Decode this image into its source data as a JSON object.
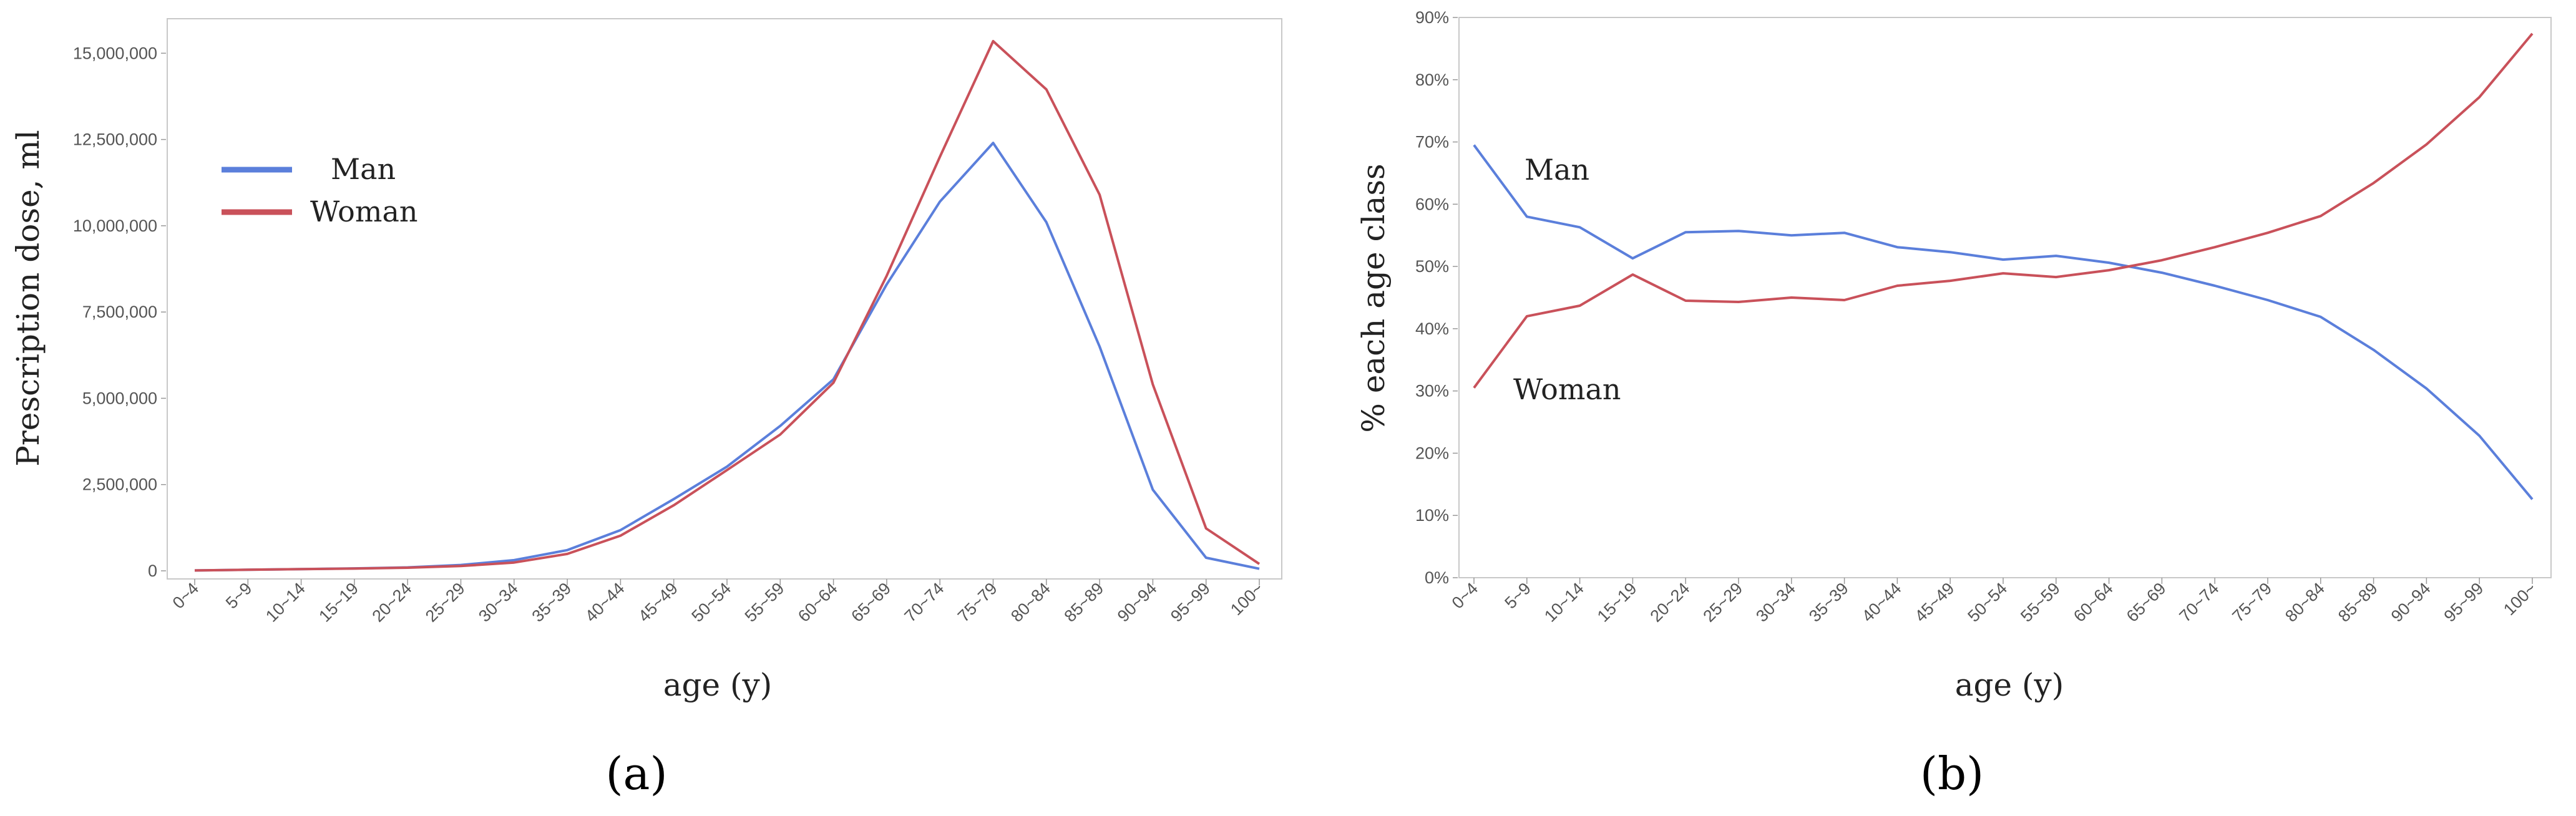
{
  "chart_data": [
    {
      "id": "a",
      "panel_label": "(a)",
      "type": "line",
      "xlabel": "age (y)",
      "ylabel": "Prescription dose, ml",
      "ylim": [
        0,
        16000000
      ],
      "yticks": [
        0,
        2500000,
        5000000,
        7500000,
        10000000,
        12500000,
        15000000
      ],
      "ytick_labels": [
        "0",
        "2,500,000",
        "5,000,000",
        "7,500,000",
        "10,000,000",
        "12,500,000",
        "15,000,000"
      ],
      "categories": [
        "0~4",
        "5~9",
        "10~14",
        "15~19",
        "20~24",
        "25~29",
        "30~34",
        "35~39",
        "40~44",
        "45~49",
        "50~54",
        "55~59",
        "60~64",
        "65~69",
        "70~74",
        "75~79",
        "80~84",
        "85~89",
        "90~94",
        "95~99",
        "100~"
      ],
      "legend_position": "top-left",
      "series": [
        {
          "name": "Man",
          "color": "#5b7fdb",
          "values": [
            10000,
            30000,
            50000,
            70000,
            100000,
            170000,
            310000,
            600000,
            1180000,
            2080000,
            3020000,
            4200000,
            5550000,
            8300000,
            10700000,
            12400000,
            10100000,
            6500000,
            2350000,
            380000,
            60000
          ]
        },
        {
          "name": "Woman",
          "color": "#c9515a",
          "values": [
            10000,
            30000,
            50000,
            65000,
            90000,
            140000,
            240000,
            490000,
            1020000,
            1900000,
            2920000,
            3950000,
            5450000,
            8550000,
            12000000,
            15350000,
            13950000,
            10900000,
            5400000,
            1230000,
            200000
          ]
        }
      ]
    },
    {
      "id": "b",
      "panel_label": "(b)",
      "type": "line",
      "xlabel": "age (y)",
      "ylabel": "% each age class",
      "ylim": [
        0,
        90
      ],
      "yticks": [
        0,
        10,
        20,
        30,
        40,
        50,
        60,
        70,
        80,
        90
      ],
      "ytick_labels": [
        "0%",
        "10%",
        "20%",
        "30%",
        "40%",
        "50%",
        "60%",
        "70%",
        "80%",
        "90%"
      ],
      "categories": [
        "0~4",
        "5~9",
        "10~14",
        "15~19",
        "20~24",
        "25~29",
        "30~34",
        "35~39",
        "40~44",
        "45~49",
        "50~54",
        "55~59",
        "60~64",
        "65~69",
        "70~74",
        "75~79",
        "80~84",
        "85~89",
        "90~94",
        "95~99",
        "100~"
      ],
      "annotations": [
        {
          "text": "Man",
          "x": "0~4",
          "y": 66
        },
        {
          "text": "Woman",
          "x": "0~4",
          "y": 30
        }
      ],
      "series": [
        {
          "name": "Man",
          "color": "#5b7fdb",
          "values": [
            69.5,
            58,
            56.3,
            51.3,
            55.5,
            55.7,
            55,
            55.4,
            53.1,
            52.3,
            51.1,
            51.7,
            50.6,
            49,
            46.9,
            44.6,
            41.9,
            36.6,
            30.4,
            22.8,
            12.6
          ]
        },
        {
          "name": "Woman",
          "color": "#c9515a",
          "values": [
            30.5,
            42,
            43.7,
            48.7,
            44.5,
            44.3,
            45,
            44.6,
            46.9,
            47.7,
            48.9,
            48.3,
            49.4,
            51,
            53.1,
            55.4,
            58.1,
            63.4,
            69.6,
            77.2,
            87.4
          ]
        }
      ]
    }
  ]
}
